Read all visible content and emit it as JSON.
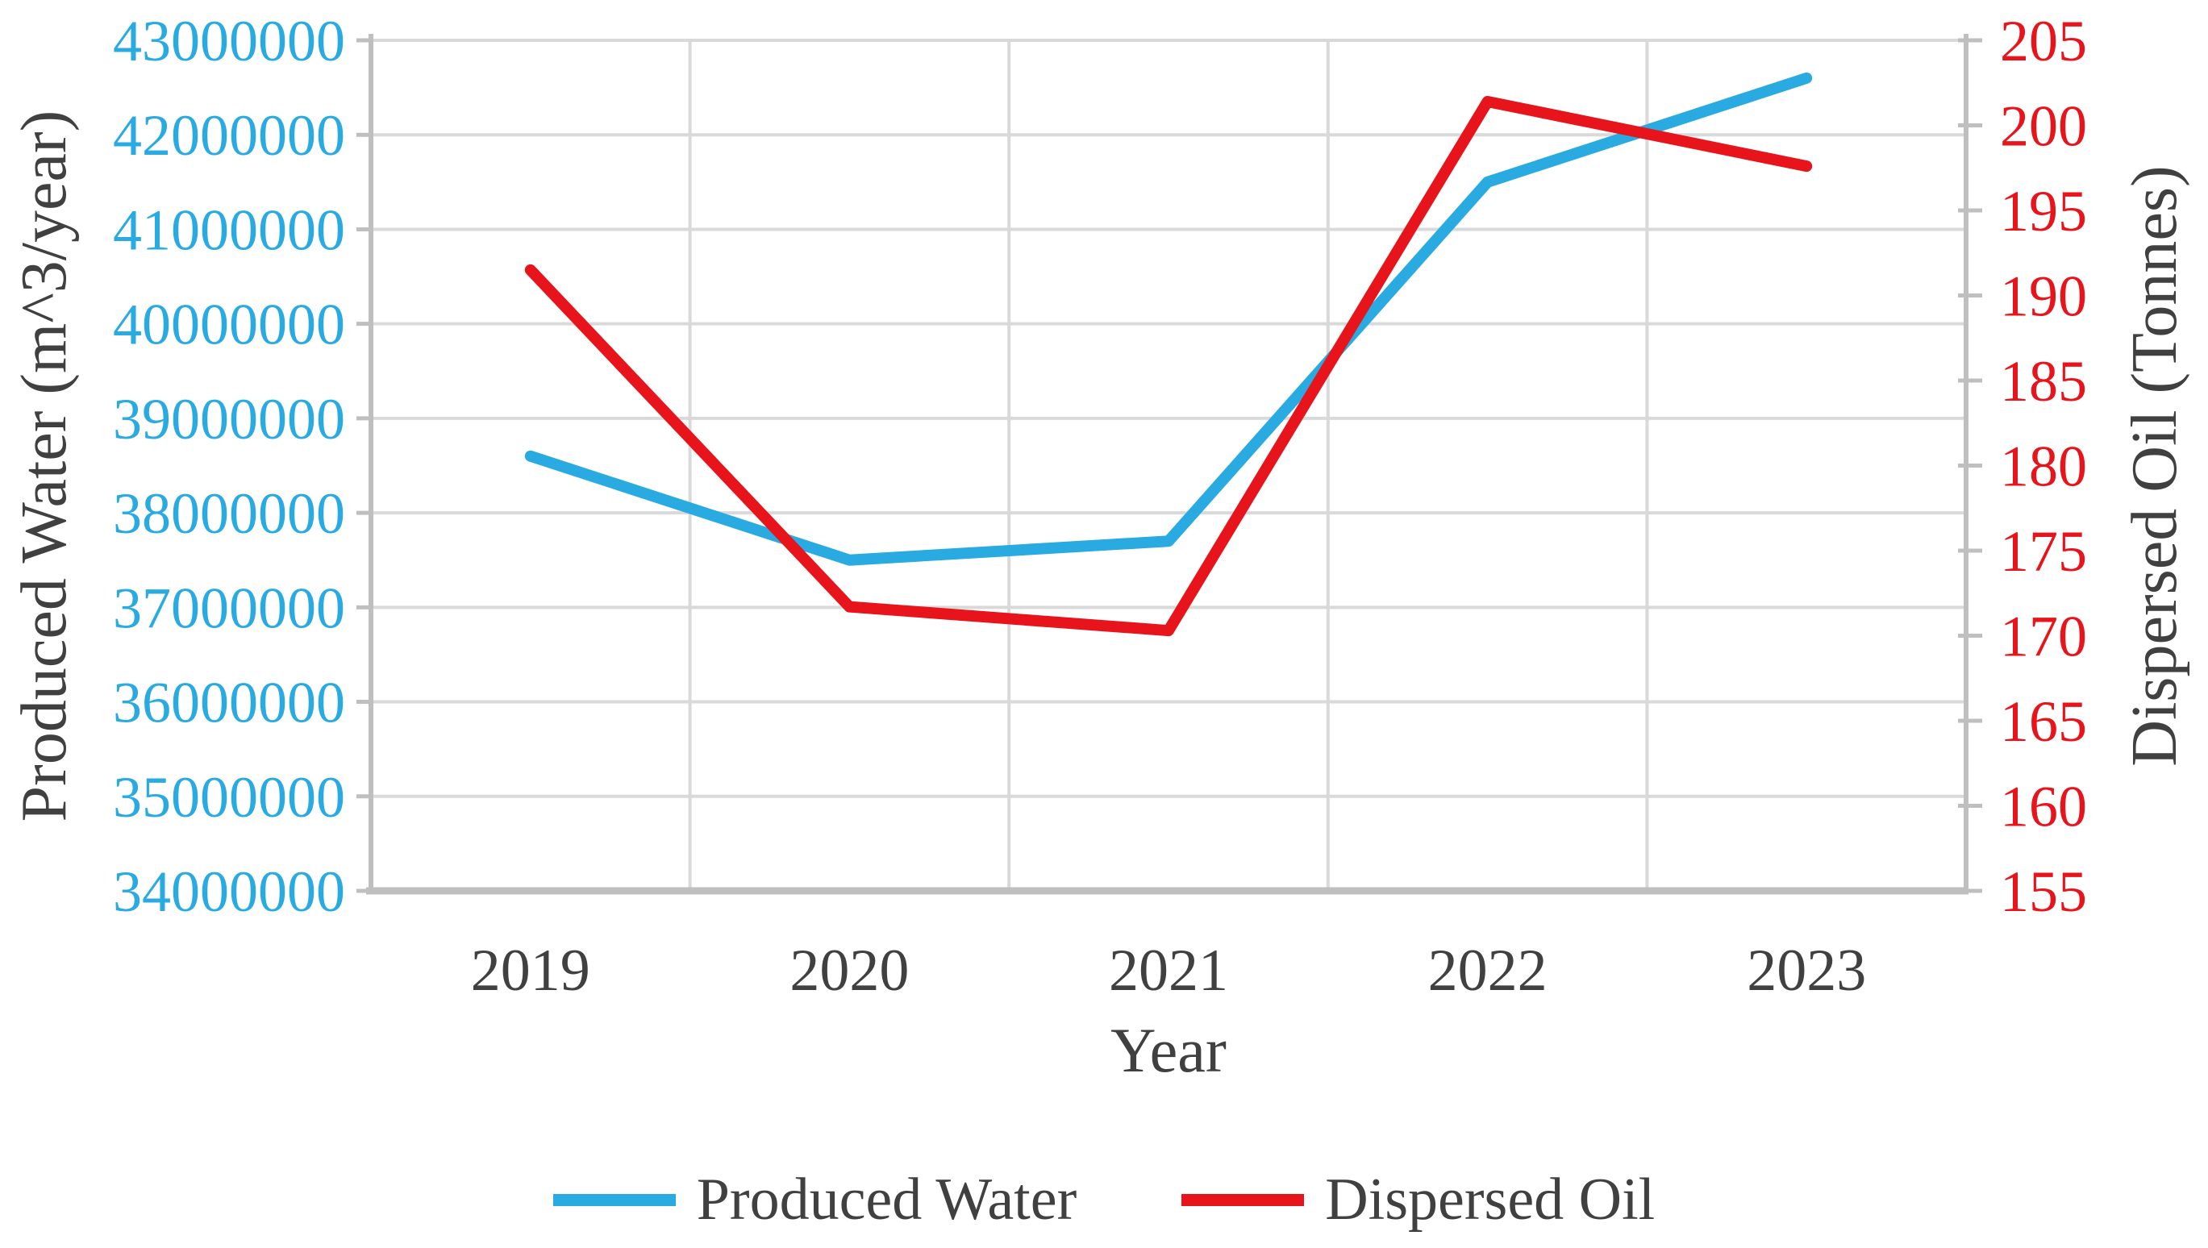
{
  "chart_data": {
    "type": "line",
    "title": "",
    "x": {
      "label": "Year",
      "categories": [
        "2019",
        "2020",
        "2021",
        "2022",
        "2023"
      ]
    },
    "series": [
      {
        "name": "Produced Water",
        "axis": "left",
        "color": "#29ABE2",
        "values": [
          38600000,
          37500000,
          37700000,
          41500000,
          42600000
        ]
      },
      {
        "name": "Dispersed Oil",
        "axis": "right",
        "color": "#E8141B",
        "values": [
          191.5,
          171.7,
          170.3,
          201.4,
          197.6
        ]
      }
    ],
    "left_axis": {
      "title": "Produced Water (m^3/year)",
      "min": 34000000,
      "max": 43000000,
      "step": 1000000,
      "ticks": [
        43000000,
        42000000,
        41000000,
        40000000,
        39000000,
        38000000,
        37000000,
        36000000,
        35000000,
        34000000
      ],
      "tick_color": "#29ABE2"
    },
    "right_axis": {
      "title": "Dispersed Oil (Tonnes)",
      "min": 155,
      "max": 205,
      "step": 5,
      "ticks": [
        205,
        200,
        195,
        190,
        185,
        180,
        175,
        170,
        165,
        160,
        155
      ],
      "tick_color": "#E8141B"
    },
    "grid": true,
    "legend_position": "bottom",
    "colors": {
      "gridline": "#D9D9D9",
      "axis_line": "#BFBFBF",
      "text": "#404040",
      "background": "#FFFFFF"
    }
  },
  "legend": {
    "items": [
      {
        "label": "Produced Water",
        "color": "#29ABE2"
      },
      {
        "label": "Dispersed Oil",
        "color": "#E8141B"
      }
    ]
  }
}
